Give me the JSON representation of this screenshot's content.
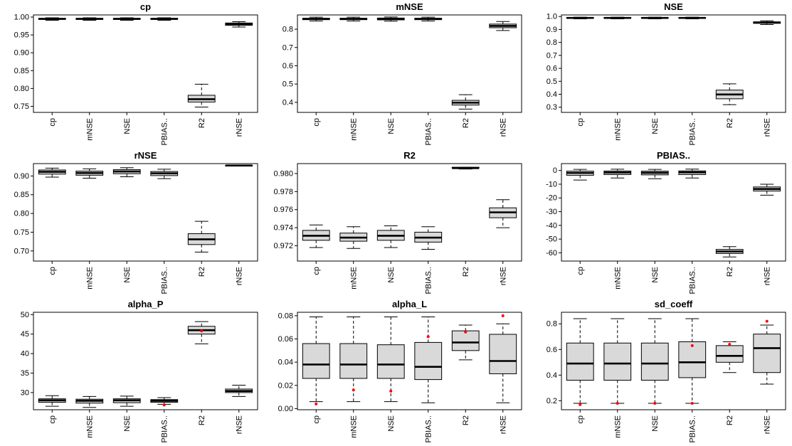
{
  "figure": {
    "background": "#ffffff",
    "box_fill": "#d9d9d9",
    "box_stroke": "#000000",
    "median_color": "#000000",
    "outlier_color": "#ff0000"
  },
  "chart_data": [
    {
      "type": "boxplot",
      "title": "cp",
      "categories": [
        "cp",
        "mNSE",
        "NSE",
        "PBIAS..",
        "R2",
        "rNSE"
      ],
      "ylim": [
        0.733,
        1.006
      ],
      "yticks": [
        0.75,
        0.8,
        0.85,
        0.9,
        0.95,
        1.0
      ],
      "ytick_labels": [
        "0.75",
        "0.80",
        "0.85",
        "0.90",
        "0.95",
        "1.00"
      ],
      "boxes": [
        {
          "low": 0.991,
          "q1": 0.9935,
          "med": 0.995,
          "q3": 0.9965,
          "high": 0.998,
          "outliers": []
        },
        {
          "low": 0.991,
          "q1": 0.9935,
          "med": 0.995,
          "q3": 0.9965,
          "high": 0.998,
          "outliers": []
        },
        {
          "low": 0.991,
          "q1": 0.9935,
          "med": 0.995,
          "q3": 0.9965,
          "high": 0.998,
          "outliers": []
        },
        {
          "low": 0.991,
          "q1": 0.9935,
          "med": 0.995,
          "q3": 0.9965,
          "high": 0.998,
          "outliers": []
        },
        {
          "low": 0.748,
          "q1": 0.762,
          "med": 0.77,
          "q3": 0.781,
          "high": 0.812,
          "outliers": []
        },
        {
          "low": 0.972,
          "q1": 0.977,
          "med": 0.98,
          "q3": 0.9835,
          "high": 0.987,
          "outliers": []
        }
      ]
    },
    {
      "type": "boxplot",
      "title": "mNSE",
      "categories": [
        "cp",
        "mNSE",
        "NSE",
        "PBIAS..",
        "R2",
        "rNSE"
      ],
      "ylim": [
        0.345,
        0.878
      ],
      "yticks": [
        0.4,
        0.5,
        0.6,
        0.7,
        0.8
      ],
      "ytick_labels": [
        "0.4",
        "0.5",
        "0.6",
        "0.7",
        "0.8"
      ],
      "boxes": [
        {
          "low": 0.845,
          "q1": 0.852,
          "med": 0.856,
          "q3": 0.86,
          "high": 0.866,
          "outliers": []
        },
        {
          "low": 0.845,
          "q1": 0.852,
          "med": 0.856,
          "q3": 0.86,
          "high": 0.866,
          "outliers": []
        },
        {
          "low": 0.844,
          "q1": 0.851,
          "med": 0.856,
          "q3": 0.861,
          "high": 0.867,
          "outliers": []
        },
        {
          "low": 0.845,
          "q1": 0.852,
          "med": 0.856,
          "q3": 0.86,
          "high": 0.866,
          "outliers": []
        },
        {
          "low": 0.363,
          "q1": 0.385,
          "med": 0.398,
          "q3": 0.411,
          "high": 0.442,
          "outliers": []
        },
        {
          "low": 0.793,
          "q1": 0.808,
          "med": 0.818,
          "q3": 0.828,
          "high": 0.842,
          "outliers": []
        }
      ]
    },
    {
      "type": "boxplot",
      "title": "NSE",
      "categories": [
        "cp",
        "mNSE",
        "NSE",
        "PBIAS..",
        "R2",
        "rNSE"
      ],
      "ylim": [
        0.26,
        1.012
      ],
      "yticks": [
        0.3,
        0.4,
        0.5,
        0.6,
        0.7,
        0.8,
        0.9,
        1.0
      ],
      "ytick_labels": [
        "0.3",
        "0.4",
        "0.5",
        "0.6",
        "0.7",
        "0.8",
        "0.9",
        "1.0"
      ],
      "boxes": [
        {
          "low": 0.982,
          "q1": 0.986,
          "med": 0.989,
          "q3": 0.992,
          "high": 0.995,
          "outliers": []
        },
        {
          "low": 0.982,
          "q1": 0.986,
          "med": 0.989,
          "q3": 0.992,
          "high": 0.995,
          "outliers": []
        },
        {
          "low": 0.982,
          "q1": 0.986,
          "med": 0.989,
          "q3": 0.992,
          "high": 0.995,
          "outliers": []
        },
        {
          "low": 0.982,
          "q1": 0.986,
          "med": 0.989,
          "q3": 0.992,
          "high": 0.995,
          "outliers": []
        },
        {
          "low": 0.32,
          "q1": 0.365,
          "med": 0.398,
          "q3": 0.432,
          "high": 0.48,
          "outliers": []
        },
        {
          "low": 0.938,
          "q1": 0.947,
          "med": 0.953,
          "q3": 0.959,
          "high": 0.967,
          "outliers": []
        }
      ]
    },
    {
      "type": "boxplot",
      "title": "rNSE",
      "categories": [
        "cp",
        "mNSE",
        "NSE",
        "PBIAS..",
        "R2",
        "rNSE"
      ],
      "ylim": [
        0.673,
        0.933
      ],
      "yticks": [
        0.7,
        0.75,
        0.8,
        0.85,
        0.9
      ],
      "ytick_labels": [
        "0.70",
        "0.75",
        "0.80",
        "0.85",
        "0.90"
      ],
      "boxes": [
        {
          "low": 0.897,
          "q1": 0.905,
          "med": 0.911,
          "q3": 0.916,
          "high": 0.921,
          "outliers": []
        },
        {
          "low": 0.894,
          "q1": 0.902,
          "med": 0.908,
          "q3": 0.913,
          "high": 0.919,
          "outliers": []
        },
        {
          "low": 0.898,
          "q1": 0.906,
          "med": 0.912,
          "q3": 0.917,
          "high": 0.922,
          "outliers": []
        },
        {
          "low": 0.893,
          "q1": 0.901,
          "med": 0.907,
          "q3": 0.912,
          "high": 0.918,
          "outliers": []
        },
        {
          "low": 0.697,
          "q1": 0.717,
          "med": 0.731,
          "q3": 0.746,
          "high": 0.779,
          "outliers": []
        },
        {
          "low": 0.9275,
          "q1": 0.9278,
          "med": 0.928,
          "q3": 0.9282,
          "high": 0.9285,
          "outliers": []
        }
      ]
    },
    {
      "type": "boxplot",
      "title": "R2",
      "categories": [
        "cp",
        "mNSE",
        "NSE",
        "PBIAS..",
        "R2",
        "rNSE"
      ],
      "ylim": [
        0.9703,
        0.9811
      ],
      "yticks": [
        0.972,
        0.974,
        0.976,
        0.978,
        0.98
      ],
      "ytick_labels": [
        "0.972",
        "0.974",
        "0.976",
        "0.978",
        "0.980"
      ],
      "boxes": [
        {
          "low": 0.9718,
          "q1": 0.9726,
          "med": 0.9731,
          "q3": 0.9737,
          "high": 0.9743,
          "outliers": []
        },
        {
          "low": 0.9717,
          "q1": 0.9725,
          "med": 0.9729,
          "q3": 0.9734,
          "high": 0.9741,
          "outliers": []
        },
        {
          "low": 0.9718,
          "q1": 0.9726,
          "med": 0.9731,
          "q3": 0.9737,
          "high": 0.9742,
          "outliers": []
        },
        {
          "low": 0.9716,
          "q1": 0.9724,
          "med": 0.9729,
          "q3": 0.9735,
          "high": 0.9741,
          "outliers": []
        },
        {
          "low": 0.9805,
          "q1": 0.9806,
          "med": 0.9806,
          "q3": 0.9807,
          "high": 0.9807,
          "outliers": []
        },
        {
          "low": 0.974,
          "q1": 0.9751,
          "med": 0.9757,
          "q3": 0.9762,
          "high": 0.9771,
          "outliers": []
        }
      ]
    },
    {
      "type": "boxplot",
      "title": "PBIAS..",
      "categories": [
        "cp",
        "mNSE",
        "NSE",
        "PBIAS..",
        "R2",
        "rNSE"
      ],
      "ylim": [
        -66,
        5
      ],
      "yticks": [
        0,
        -10,
        -20,
        -30,
        -40,
        -50,
        -60
      ],
      "ytick_labels": [
        "0",
        "-10",
        "-20",
        "-30",
        "-40",
        "-50",
        "-60"
      ],
      "boxes": [
        {
          "low": -7.0,
          "q1": -3.5,
          "med": -1.8,
          "q3": -0.5,
          "high": 0.8,
          "outliers": []
        },
        {
          "low": -5.5,
          "q1": -3.0,
          "med": -1.5,
          "q3": -0.4,
          "high": 0.9,
          "outliers": []
        },
        {
          "low": -6.0,
          "q1": -3.2,
          "med": -1.7,
          "q3": -0.5,
          "high": 0.8,
          "outliers": []
        },
        {
          "low": -5.5,
          "q1": -3.0,
          "med": -1.4,
          "q3": -0.3,
          "high": 1.0,
          "outliers": []
        },
        {
          "low": -63.0,
          "q1": -60.5,
          "med": -59.0,
          "q3": -57.5,
          "high": -55.5,
          "outliers": []
        },
        {
          "low": -18.0,
          "q1": -15.0,
          "med": -13.5,
          "q3": -12.0,
          "high": -10.0,
          "outliers": []
        }
      ]
    },
    {
      "type": "boxplot",
      "title": "alpha_P",
      "categories": [
        "cp",
        "mNSE",
        "NSE",
        "PBIAS..",
        "R2",
        "rNSE"
      ],
      "ylim": [
        25.6,
        50.6
      ],
      "yticks": [
        30,
        35,
        40,
        45,
        50
      ],
      "ytick_labels": [
        "30",
        "35",
        "40",
        "45",
        "50"
      ],
      "boxes": [
        {
          "low": 26.5,
          "q1": 27.5,
          "med": 28.0,
          "q3": 28.4,
          "high": 29.2,
          "outliers": []
        },
        {
          "low": 26.2,
          "q1": 27.3,
          "med": 27.9,
          "q3": 28.3,
          "high": 29.0,
          "outliers": []
        },
        {
          "low": 26.5,
          "q1": 27.4,
          "med": 28.0,
          "q3": 28.4,
          "high": 29.1,
          "outliers": []
        },
        {
          "low": 27.0,
          "q1": 27.5,
          "med": 27.9,
          "q3": 28.2,
          "high": 28.7,
          "outliers": [
            26.8
          ]
        },
        {
          "low": 42.5,
          "q1": 45.0,
          "med": 46.0,
          "q3": 47.0,
          "high": 48.2,
          "outliers": [
            45.8
          ]
        },
        {
          "low": 29.0,
          "q1": 30.0,
          "med": 30.4,
          "q3": 30.9,
          "high": 31.9,
          "outliers": []
        }
      ]
    },
    {
      "type": "boxplot",
      "title": "alpha_L",
      "categories": [
        "cp",
        "mNSE",
        "NSE",
        "PBIAS..",
        "R2",
        "rNSE"
      ],
      "ylim": [
        -0.001,
        0.083
      ],
      "yticks": [
        0.0,
        0.02,
        0.04,
        0.06,
        0.08
      ],
      "ytick_labels": [
        "0.00",
        "0.02",
        "0.04",
        "0.06",
        "0.08"
      ],
      "boxes": [
        {
          "low": 0.006,
          "q1": 0.026,
          "med": 0.038,
          "q3": 0.056,
          "high": 0.079,
          "outliers": [
            0.004
          ]
        },
        {
          "low": 0.006,
          "q1": 0.026,
          "med": 0.038,
          "q3": 0.056,
          "high": 0.079,
          "outliers": [
            0.016
          ]
        },
        {
          "low": 0.006,
          "q1": 0.026,
          "med": 0.038,
          "q3": 0.055,
          "high": 0.079,
          "outliers": [
            0.015
          ]
        },
        {
          "low": 0.005,
          "q1": 0.025,
          "med": 0.036,
          "q3": 0.057,
          "high": 0.079,
          "outliers": [
            0.062
          ]
        },
        {
          "low": 0.042,
          "q1": 0.05,
          "med": 0.057,
          "q3": 0.067,
          "high": 0.072,
          "outliers": [
            0.066
          ]
        },
        {
          "low": 0.005,
          "q1": 0.03,
          "med": 0.041,
          "q3": 0.064,
          "high": 0.073,
          "outliers": [
            0.08
          ]
        }
      ]
    },
    {
      "type": "boxplot",
      "title": "sd_coeff",
      "categories": [
        "cp",
        "mNSE",
        "NSE",
        "PBIAS..",
        "R2",
        "rNSE"
      ],
      "ylim": [
        0.13,
        0.89
      ],
      "yticks": [
        0.2,
        0.4,
        0.6,
        0.8
      ],
      "ytick_labels": [
        "0.2",
        "0.4",
        "0.6",
        "0.8"
      ],
      "boxes": [
        {
          "low": 0.18,
          "q1": 0.36,
          "med": 0.49,
          "q3": 0.65,
          "high": 0.84,
          "outliers": [
            0.17
          ]
        },
        {
          "low": 0.18,
          "q1": 0.36,
          "med": 0.49,
          "q3": 0.65,
          "high": 0.84,
          "outliers": [
            0.18
          ]
        },
        {
          "low": 0.18,
          "q1": 0.36,
          "med": 0.49,
          "q3": 0.65,
          "high": 0.84,
          "outliers": [
            0.18
          ]
        },
        {
          "low": 0.18,
          "q1": 0.38,
          "med": 0.5,
          "q3": 0.66,
          "high": 0.84,
          "outliers": [
            0.63,
            0.18
          ]
        },
        {
          "low": 0.42,
          "q1": 0.5,
          "med": 0.55,
          "q3": 0.63,
          "high": 0.66,
          "outliers": [
            0.64
          ]
        },
        {
          "low": 0.33,
          "q1": 0.42,
          "med": 0.61,
          "q3": 0.72,
          "high": 0.79,
          "outliers": [
            0.82
          ]
        }
      ]
    }
  ]
}
